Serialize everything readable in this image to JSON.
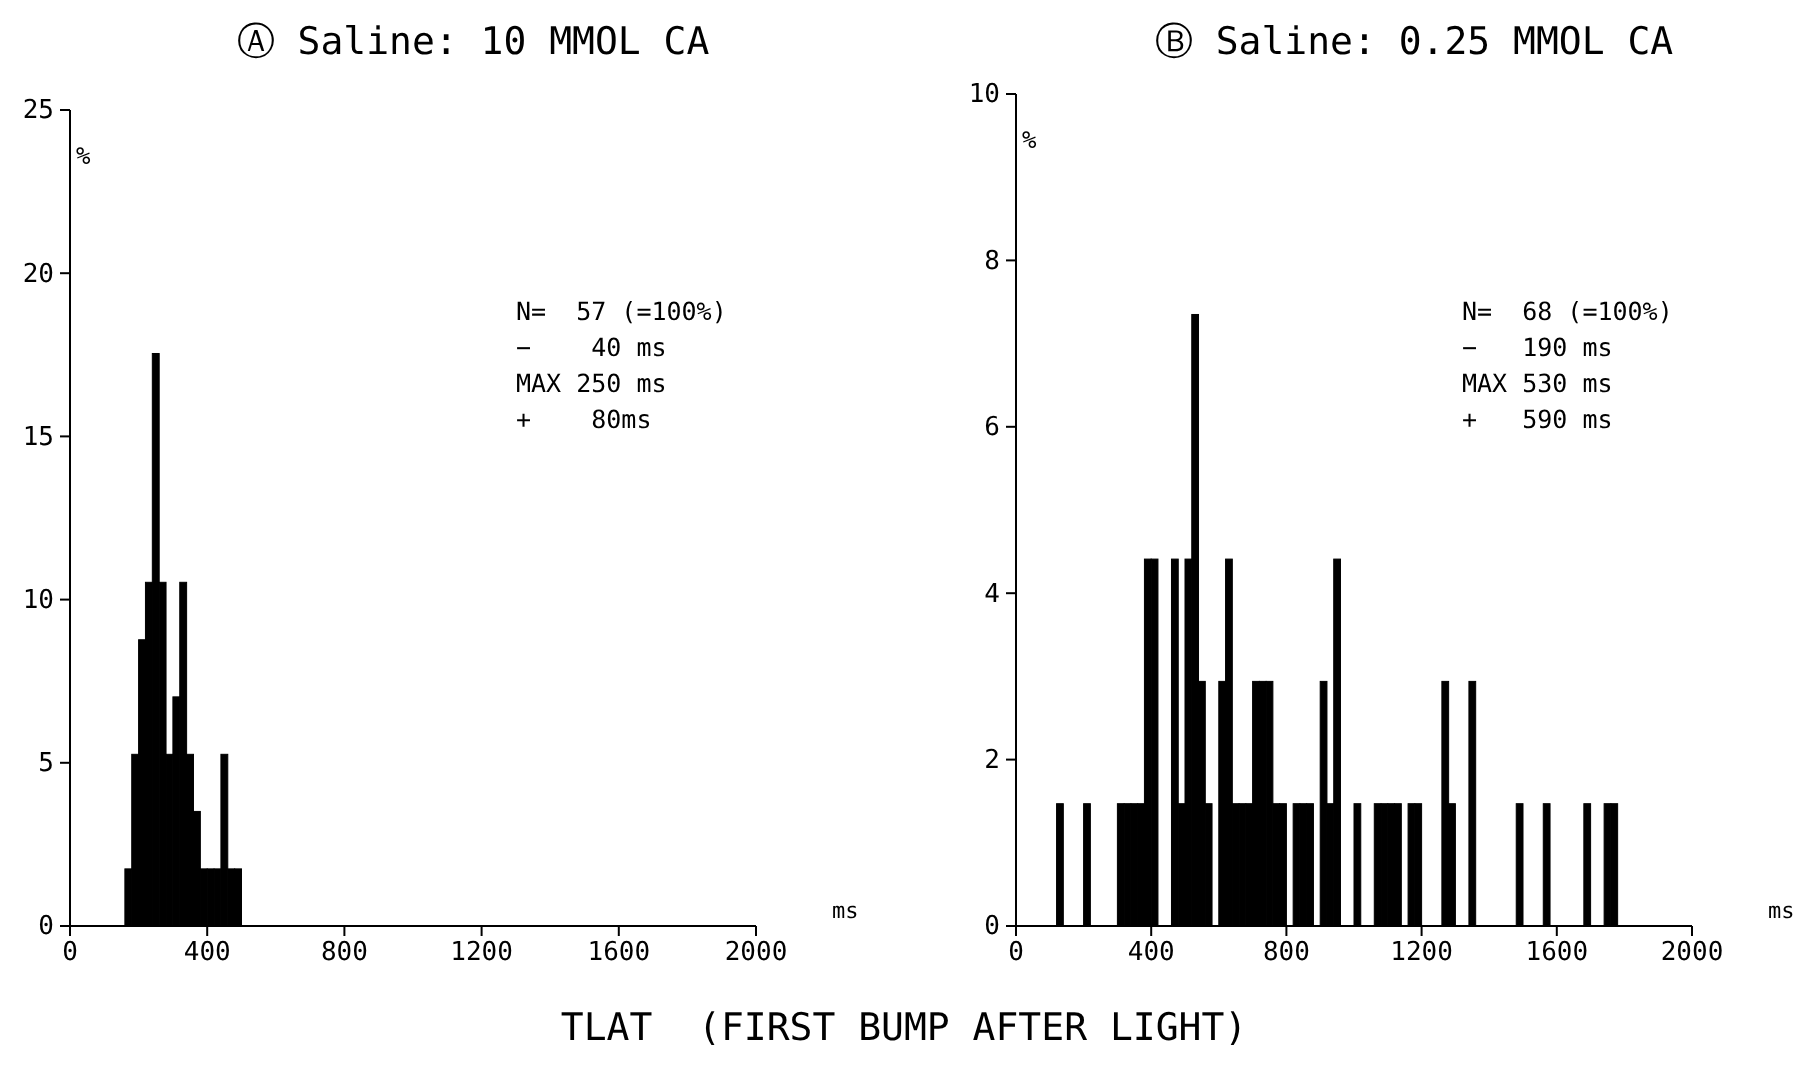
{
  "chart_data": [
    {
      "type": "histogram",
      "title": "Ⓐ Saline:  10 MMOL CA",
      "xlabel": "ms",
      "ylabel": "%",
      "color": "#000000",
      "bins": [
        160,
        180,
        200,
        220,
        240,
        260,
        280,
        300,
        320,
        340,
        360,
        380,
        400,
        420,
        440,
        460,
        480,
        500
      ],
      "values": [
        1.75,
        5.26,
        8.77,
        10.53,
        17.54,
        10.53,
        5.26,
        7.02,
        10.53,
        5.26,
        3.51,
        1.75,
        1.75,
        1.75,
        5.26,
        1.75,
        1.75
      ],
      "xlim": [
        0,
        2000
      ],
      "xticks": [
        0,
        400,
        800,
        1200,
        1600,
        2000
      ],
      "ylim": [
        0,
        25
      ],
      "yticks": [
        0,
        5,
        10,
        15,
        20,
        25
      ],
      "grid": false,
      "annotations": [
        "N=  57 (=100%)",
        "−    40 ms",
        "MAX 250 ms",
        "+    80ms",
        "TLAT  (FIRST BUMP AFTER LIGHT)"
      ]
    },
    {
      "type": "histogram",
      "title": "Ⓑ Saline: 0.25 MMOL CA",
      "xlabel": "ms",
      "ylabel": "%",
      "color": "#000000",
      "bins": [
        100,
        120,
        140,
        160,
        180,
        200,
        220,
        240,
        260,
        280,
        300,
        320,
        340,
        360,
        380,
        400,
        420,
        440,
        460,
        480,
        500,
        520,
        540,
        560,
        580,
        600,
        620,
        640,
        660,
        680,
        700,
        720,
        740,
        760,
        780,
        800,
        820,
        840,
        860,
        880,
        900,
        920,
        940,
        960,
        980,
        1000,
        1020,
        1040,
        1060,
        1080,
        1100,
        1120,
        1140,
        1160,
        1180,
        1200,
        1220,
        1240,
        1260,
        1280,
        1300,
        1320,
        1340,
        1360,
        1380,
        1400,
        1420,
        1440,
        1460,
        1480,
        1500,
        1520,
        1540,
        1560,
        1580,
        1600,
        1620,
        1640,
        1660,
        1680,
        1700,
        1720,
        1740,
        1760,
        1780,
        1800
      ],
      "values": [
        0,
        1.47,
        0,
        0,
        0,
        1.47,
        0,
        0,
        0,
        0,
        1.47,
        1.47,
        1.47,
        1.47,
        4.41,
        4.41,
        0,
        0,
        4.41,
        1.47,
        4.41,
        7.35,
        2.94,
        1.47,
        0,
        2.94,
        4.41,
        1.47,
        1.47,
        1.47,
        2.94,
        2.94,
        2.94,
        1.47,
        1.47,
        0,
        1.47,
        1.47,
        1.47,
        0,
        2.94,
        1.47,
        4.41,
        0,
        0,
        1.47,
        0,
        0,
        1.47,
        1.47,
        1.47,
        1.47,
        0,
        1.47,
        1.47,
        0,
        0,
        0,
        2.94,
        1.47,
        0,
        0,
        2.94,
        0,
        0,
        0,
        0,
        0,
        0,
        1.47,
        0,
        0,
        0,
        1.47,
        0,
        0,
        0,
        0,
        0,
        1.47,
        0,
        0,
        1.47,
        1.47,
        0
      ],
      "xlim": [
        0,
        2000
      ],
      "xticks": [
        0,
        400,
        800,
        1200,
        1600,
        2000
      ],
      "ylim": [
        0,
        10
      ],
      "yticks": [
        0,
        2,
        4,
        6,
        8,
        10
      ],
      "grid": false,
      "annotations": [
        "N=  68 (=100%)",
        "−   190 ms",
        "MAX 530 ms",
        "+   590 ms"
      ]
    }
  ]
}
